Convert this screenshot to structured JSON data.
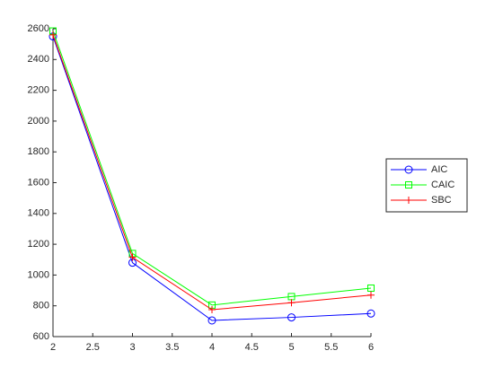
{
  "chart_data": {
    "type": "line",
    "x": [
      2,
      3,
      4,
      5,
      6
    ],
    "series": [
      {
        "name": "AIC",
        "color": "#0000ff",
        "marker": "circle",
        "values": [
          2550,
          1080,
          705,
          725,
          750
        ]
      },
      {
        "name": "CAIC",
        "color": "#00ff00",
        "marker": "square",
        "values": [
          2585,
          1140,
          805,
          860,
          915
        ]
      },
      {
        "name": "SBC",
        "color": "#ff0000",
        "marker": "plus",
        "values": [
          2560,
          1115,
          775,
          820,
          870
        ]
      }
    ],
    "xlim": [
      2,
      6
    ],
    "xticks": [
      2,
      2.5,
      3,
      3.5,
      4,
      4.5,
      5,
      5.5,
      6
    ],
    "ylim": [
      600,
      2600
    ],
    "yticks": [
      600,
      800,
      1000,
      1200,
      1400,
      1600,
      1800,
      2000,
      2200,
      2400,
      2600
    ],
    "grid": false,
    "legend": "east"
  }
}
